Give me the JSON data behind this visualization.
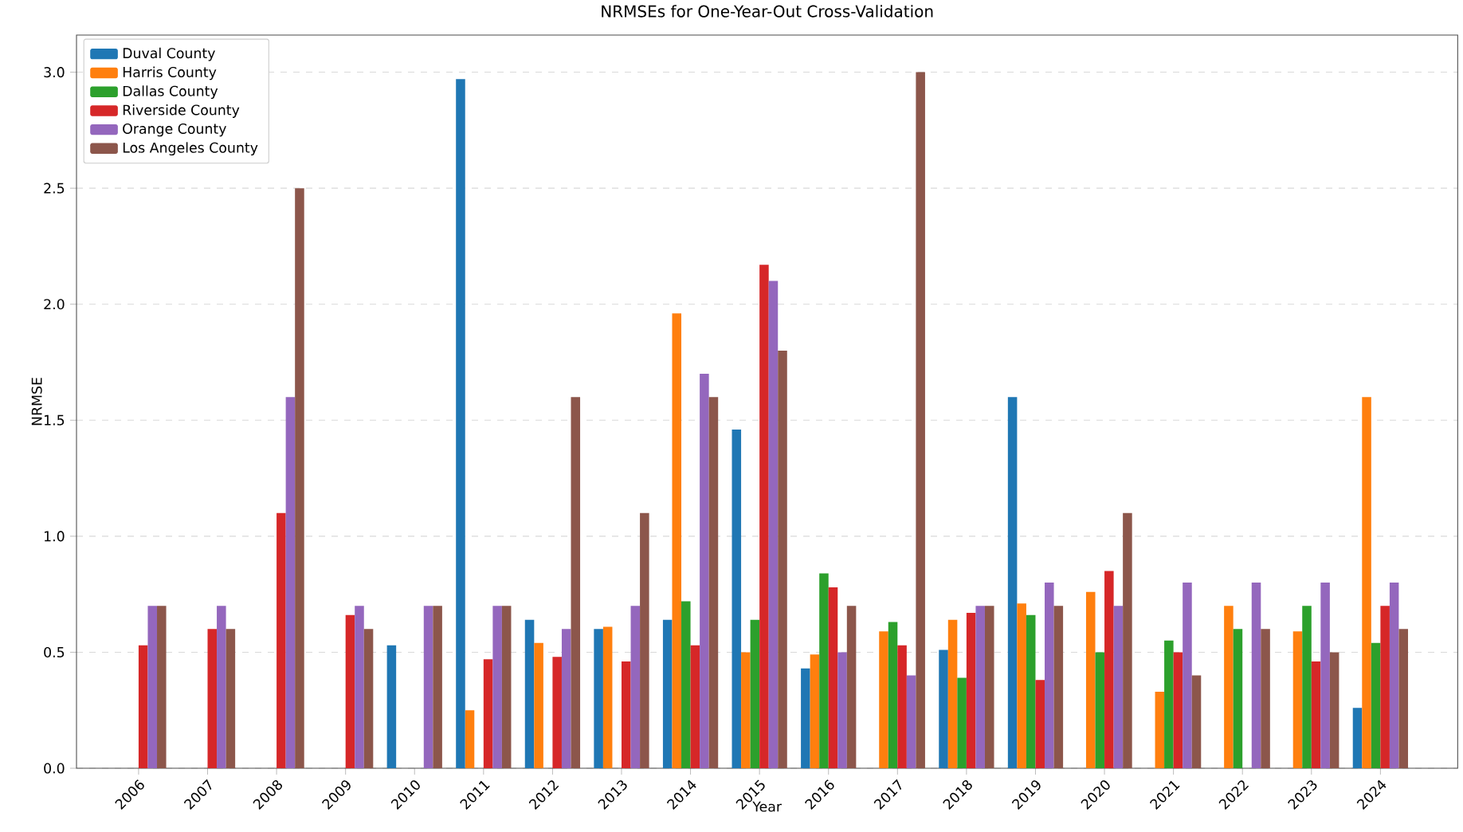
{
  "chart_data": {
    "type": "bar",
    "title": "NRMSEs for One-Year-Out Cross-Validation",
    "xlabel": "Year",
    "ylabel": "NRMSE",
    "categories": [
      "2006",
      "2007",
      "2008",
      "2009",
      "2010",
      "2011",
      "2012",
      "2013",
      "2014",
      "2015",
      "2016",
      "2017",
      "2018",
      "2019",
      "2020",
      "2021",
      "2022",
      "2023",
      "2024"
    ],
    "series": [
      {
        "name": "Duval County",
        "color": "#1f77b4",
        "values": [
          null,
          null,
          null,
          null,
          0.53,
          2.97,
          0.64,
          0.6,
          0.64,
          1.46,
          0.43,
          null,
          0.51,
          1.6,
          null,
          null,
          null,
          null,
          0.26
        ]
      },
      {
        "name": "Harris County",
        "color": "#ff7f0e",
        "values": [
          null,
          null,
          null,
          null,
          null,
          0.25,
          0.54,
          0.61,
          1.96,
          0.5,
          0.49,
          0.59,
          0.64,
          0.71,
          0.76,
          0.33,
          0.7,
          0.59,
          1.6
        ]
      },
      {
        "name": "Dallas County",
        "color": "#2ca02c",
        "values": [
          null,
          null,
          null,
          null,
          null,
          null,
          null,
          null,
          0.72,
          0.64,
          0.84,
          0.63,
          0.39,
          0.66,
          0.5,
          0.55,
          0.6,
          0.7,
          0.54
        ]
      },
      {
        "name": "Riverside County",
        "color": "#d62728",
        "values": [
          0.53,
          0.6,
          1.1,
          0.66,
          null,
          0.47,
          0.48,
          0.46,
          0.53,
          2.17,
          0.78,
          0.53,
          0.67,
          0.38,
          0.85,
          0.5,
          null,
          0.46,
          0.7
        ]
      },
      {
        "name": "Orange County",
        "color": "#9467bd",
        "values": [
          0.7,
          0.7,
          1.6,
          0.7,
          0.7,
          0.7,
          0.6,
          0.7,
          1.7,
          2.1,
          0.5,
          0.4,
          0.7,
          0.8,
          0.7,
          0.8,
          0.8,
          0.8,
          0.8
        ]
      },
      {
        "name": "Los Angeles County",
        "color": "#8c564b",
        "values": [
          0.7,
          0.6,
          2.5,
          0.6,
          0.7,
          0.7,
          1.6,
          1.1,
          1.6,
          1.8,
          0.7,
          3.0,
          0.7,
          0.7,
          1.1,
          0.4,
          0.6,
          0.5,
          0.6
        ]
      }
    ],
    "ylim": [
      0,
      3.16
    ],
    "yticks": [
      {
        "value": 0,
        "label": "0.0"
      },
      {
        "value": 0.5,
        "label": "0.5"
      },
      {
        "value": 1,
        "label": "1.0"
      },
      {
        "value": 1.5,
        "label": "1.5"
      },
      {
        "value": 2,
        "label": "2.0"
      },
      {
        "value": 2.5,
        "label": "2.5"
      },
      {
        "value": 3,
        "label": "3.0"
      }
    ],
    "grid": "y",
    "legend": "top left"
  }
}
